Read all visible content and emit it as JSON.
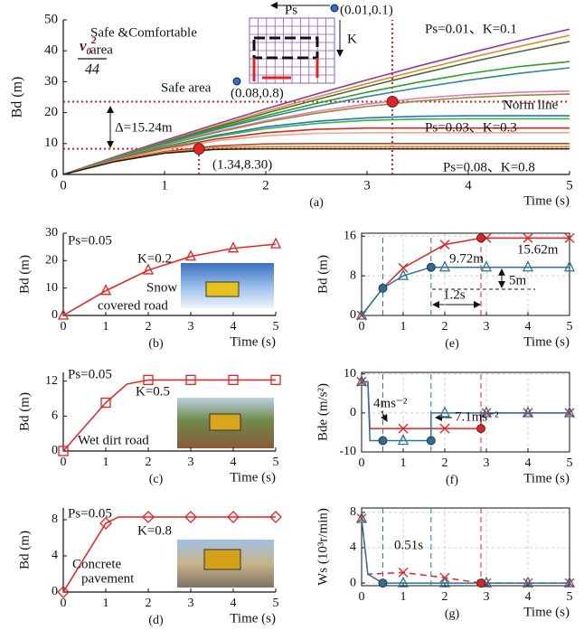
{
  "chart_data": [
    {
      "type": "line",
      "panel_label": "(a)",
      "xlabel": "Time (s)",
      "ylabel": "Bd (m)",
      "xlim": [
        0,
        5
      ],
      "ylim": [
        0,
        50
      ],
      "xticks": [
        0,
        1,
        2,
        3,
        4,
        5
      ],
      "yticks": [
        0,
        10,
        20,
        30,
        40,
        50
      ],
      "grid": false,
      "box": false,
      "x": [
        0,
        0.5,
        1,
        1.5,
        2,
        2.5,
        3,
        3.5,
        4,
        4.5,
        5
      ],
      "series": [
        {
          "color": "#8e3a9e",
          "values": [
            0,
            5.6,
            11,
            16.2,
            21.2,
            26,
            30.6,
            35,
            39.2,
            43.2,
            47
          ]
        },
        {
          "color": "#e08a2b",
          "values": [
            0,
            5.4,
            10.6,
            15.6,
            20.4,
            25,
            29.4,
            33.6,
            37.6,
            41.4,
            45
          ]
        },
        {
          "color": "#4f6b3a",
          "values": [
            0,
            5.3,
            10.4,
            15.2,
            19.8,
            24.2,
            28.4,
            32.4,
            36.2,
            39.7,
            43
          ]
        },
        {
          "color": "#2ca02c",
          "values": [
            0,
            5.2,
            10.2,
            14.8,
            19,
            23,
            26.6,
            29.8,
            32.6,
            34.9,
            36.5
          ]
        },
        {
          "color": "#2e8b8b",
          "values": [
            0,
            5.1,
            10,
            14.4,
            18.4,
            22,
            25.2,
            28,
            30.5,
            32.7,
            34.5
          ]
        },
        {
          "color": "#e377c2",
          "values": [
            0,
            5,
            9.6,
            13.8,
            17.4,
            20.4,
            22.8,
            24.6,
            25.8,
            26.6,
            27
          ]
        },
        {
          "color": "#9a8b2d",
          "values": [
            0,
            5,
            9.5,
            13.5,
            17,
            19.8,
            22,
            23.7,
            24.9,
            25.6,
            26
          ]
        },
        {
          "color": "#1f77b4",
          "values": [
            0,
            4.8,
            9,
            12.6,
            15.4,
            17.2,
            18.3,
            18.8,
            19,
            19,
            19
          ]
        },
        {
          "color": "#3cb043",
          "values": [
            0,
            4.7,
            8.8,
            12.2,
            14.8,
            16.5,
            17.5,
            17.9,
            18,
            18,
            18
          ]
        },
        {
          "color": "#d62728",
          "values": [
            0,
            4.6,
            8.4,
            11.4,
            13.5,
            14.6,
            15,
            15,
            15,
            15,
            15
          ]
        },
        {
          "color": "#f4a582",
          "values": [
            0,
            4.5,
            8.1,
            10.8,
            12.5,
            13.3,
            13.5,
            13.5,
            13.5,
            13.5,
            13.5
          ]
        },
        {
          "color": "#8c564b",
          "values": [
            0,
            4.3,
            7.4,
            9.2,
            9.9,
            10,
            10,
            10,
            10,
            10,
            10
          ]
        },
        {
          "color": "#ff7f0e",
          "values": [
            0,
            4.2,
            7.2,
            8.7,
            9,
            9,
            9,
            9,
            9,
            9,
            9
          ]
        },
        {
          "color": "#222222",
          "values": [
            0,
            4.1,
            6.9,
            8.1,
            8.3,
            8.3,
            8.3,
            8.3,
            8.3,
            8.3,
            8.3
          ]
        }
      ],
      "hlines": [
        {
          "y": 8.3,
          "color": "#d9201c",
          "style": "dotted"
        },
        {
          "y": 23.54,
          "color": "#d9201c",
          "style": "dotted"
        }
      ],
      "vlines": [
        {
          "x": 1.34,
          "y2": 8.3,
          "color": "#d9201c",
          "style": "dotted"
        },
        {
          "x": 3.25,
          "color": "#d9201c",
          "style": "dotted"
        }
      ],
      "points": [
        {
          "x": 1.34,
          "y": 8.3,
          "color": "#e8211f"
        },
        {
          "x": 3.25,
          "y": 23.54,
          "color": "#e8211f"
        }
      ],
      "formula": {
        "symbol": "v",
        "subscript": "0",
        "superscript": "2",
        "denominator": "44"
      },
      "annotations": [
        "Ps",
        "(0.01,0.1)",
        "Safe &Comfortable",
        "area",
        "K",
        "Safe area",
        "(0.08,0.8)",
        "Ps=0.01、K=0.1",
        "Norm line",
        "Ps=0.03、K=0.3",
        "Ps=0.08、K=0.8",
        "(1.34,8.30)",
        "Δ=15.24m"
      ]
    },
    {
      "type": "line",
      "panel_label": "(b)",
      "xlabel": "Time (s)",
      "ylabel": "Bd (m)",
      "xlim": [
        0,
        5
      ],
      "ylim": [
        0,
        30
      ],
      "xticks": [
        0,
        1,
        2,
        3,
        4,
        5
      ],
      "yticks": [
        0,
        10,
        20,
        30
      ],
      "grid": false,
      "box": false,
      "x": [
        0,
        1,
        2,
        3,
        4,
        5
      ],
      "series": [
        {
          "color": "#e8211f",
          "marker": "triangle",
          "values": [
            0,
            9,
            16.5,
            21.5,
            24.5,
            26
          ]
        }
      ],
      "annotations": [
        "Ps=0.05",
        "K=0.2",
        "Snow",
        "covered road"
      ]
    },
    {
      "type": "line",
      "panel_label": "(c)",
      "xlabel": "Time (s)",
      "ylabel": "Bd (m)",
      "xlim": [
        0,
        5
      ],
      "ylim": [
        0,
        13.5
      ],
      "xticks": [
        0,
        1,
        2,
        3,
        4,
        5
      ],
      "yticks": [
        0,
        6,
        12
      ],
      "grid": false,
      "box": false,
      "x": [
        0,
        1,
        1.5,
        2,
        3,
        4,
        5
      ],
      "series": [
        {
          "color": "#e8211f",
          "marker": "square",
          "values": [
            0,
            8.3,
            11.5,
            12.2,
            12.2,
            12.2,
            12.2
          ]
        }
      ],
      "annotations": [
        "Ps=0.05",
        "K=0.5",
        "Wet dirt road"
      ]
    },
    {
      "type": "line",
      "panel_label": "(d)",
      "xlabel": "Time (s)",
      "ylabel": "Bd (m)",
      "xlim": [
        0,
        5
      ],
      "ylim": [
        0,
        9.3
      ],
      "xticks": [
        0,
        1,
        2,
        3,
        4,
        5
      ],
      "yticks": [
        0,
        4,
        8
      ],
      "grid": false,
      "box": false,
      "x": [
        0,
        1,
        1.3,
        2,
        3,
        4,
        5
      ],
      "series": [
        {
          "color": "#e8211f",
          "marker": "diamond",
          "values": [
            0,
            7.6,
            8.3,
            8.3,
            8.3,
            8.3,
            8.3
          ]
        }
      ],
      "annotations": [
        "Ps=0.05",
        "K=0.8",
        "Concrete",
        "pavement"
      ]
    },
    {
      "type": "line",
      "panel_label": "(e)",
      "xlabel": "Time (s)",
      "ylabel": "Bd (m)",
      "xlim": [
        0,
        5
      ],
      "ylim": [
        0,
        16.6
      ],
      "xticks": [
        0,
        1,
        2,
        3,
        4,
        5
      ],
      "yticks": [
        0,
        8,
        16
      ],
      "grid": true,
      "box": true,
      "series": [
        {
          "color": "#e8211f",
          "marker": "x",
          "x": [
            0,
            0.51,
            1,
            2,
            2.87,
            3,
            4,
            5
          ],
          "values": [
            0,
            5.5,
            9.6,
            14.3,
            15.62,
            15.62,
            15.62,
            15.62
          ]
        },
        {
          "color": "#2b7596",
          "marker": "triangle",
          "x": [
            0,
            0.51,
            1,
            1.67,
            2,
            3,
            4,
            5
          ],
          "values": [
            0,
            5.5,
            8,
            9.72,
            9.72,
            9.72,
            9.72,
            9.72
          ]
        }
      ],
      "vlines": [
        {
          "x": 0.51,
          "color": "#2b7596",
          "style": "dashed"
        },
        {
          "x": 1.67,
          "color": "#2b7596",
          "style": "dashed"
        },
        {
          "x": 2.87,
          "color": "#e8211f",
          "style": "dashed"
        }
      ],
      "points": [
        {
          "x": 0.51,
          "y": 5.5,
          "color": "#2b6e9c"
        },
        {
          "x": 1.67,
          "y": 9.72,
          "color": "#2b6e9c"
        },
        {
          "x": 2.87,
          "y": 15.62,
          "color": "#e8211f"
        }
      ],
      "annotations": [
        "9.72m",
        "15.62m",
        "5m",
        "1.2s"
      ]
    },
    {
      "type": "line",
      "panel_label": "(f)",
      "xlabel": "Time (s)",
      "ylabel": "Bde (m/s²)",
      "xlim": [
        0,
        5
      ],
      "ylim": [
        -10,
        10.4
      ],
      "xticks": [
        0,
        1,
        2,
        3,
        4,
        5
      ],
      "yticks": [
        -10,
        0,
        10
      ],
      "grid": true,
      "box": true,
      "series": [
        {
          "color": "#e8211f",
          "marker": "x",
          "x": [
            0,
            0.15,
            0.2,
            1,
            2,
            2.87,
            2.87,
            3,
            4,
            5
          ],
          "values": [
            8,
            8,
            -4,
            -4,
            -4,
            -4,
            0,
            0,
            0,
            0
          ]
        },
        {
          "color": "#2b7596",
          "marker": "triangle",
          "x": [
            0,
            0.15,
            0.2,
            1,
            1.67,
            1.67,
            2,
            3,
            4,
            5
          ],
          "values": [
            8,
            8,
            -7.1,
            -7.1,
            -7.1,
            0,
            0,
            0,
            0,
            0
          ]
        }
      ],
      "vlines": [
        {
          "x": 0.51,
          "color": "#2b7596",
          "style": "dashed"
        },
        {
          "x": 1.67,
          "color": "#2b7596",
          "style": "dashed"
        },
        {
          "x": 2.87,
          "color": "#e8211f",
          "style": "dashed"
        }
      ],
      "points": [
        {
          "x": 0.51,
          "y": -7.1,
          "color": "#2b6e9c"
        },
        {
          "x": 1.67,
          "y": -7.1,
          "color": "#2b6e9c"
        },
        {
          "x": 2.87,
          "y": -4,
          "color": "#e8211f"
        }
      ],
      "annotations": [
        "4ms⁻²",
        "7.1ms⁻²"
      ]
    },
    {
      "type": "line",
      "panel_label": "(g)",
      "xlabel": "Time (s)",
      "ylabel": "Ws (10³r/min)",
      "xlim": [
        0,
        5
      ],
      "ylim": [
        -0.3,
        8.5
      ],
      "xticks": [
        0,
        1,
        2,
        3,
        4,
        5
      ],
      "yticks": [
        0,
        4,
        8
      ],
      "grid": true,
      "box": true,
      "series": [
        {
          "color": "#e8211f",
          "marker": "x",
          "dashed": true,
          "x": [
            0,
            0.15,
            1,
            2,
            2.87,
            3,
            4,
            5
          ],
          "values": [
            7.3,
            1,
            1.2,
            0.6,
            0,
            0,
            0,
            0
          ]
        },
        {
          "color": "#2b7596",
          "marker": "triangle",
          "x": [
            0,
            0.15,
            0.51,
            1,
            2,
            3,
            4,
            5
          ],
          "values": [
            7.3,
            1,
            0,
            0,
            0,
            0,
            0,
            0
          ]
        }
      ],
      "vlines": [
        {
          "x": 0.51,
          "color": "#2b7596",
          "style": "dashed"
        },
        {
          "x": 1.67,
          "color": "#2b7596",
          "style": "dashed"
        },
        {
          "x": 2.87,
          "color": "#e8211f",
          "style": "dashed"
        }
      ],
      "points": [
        {
          "x": 0.51,
          "y": 0,
          "color": "#2b6e9c"
        },
        {
          "x": 2.87,
          "y": 0,
          "color": "#e8211f"
        }
      ],
      "annotations": [
        "0.51s"
      ]
    }
  ]
}
